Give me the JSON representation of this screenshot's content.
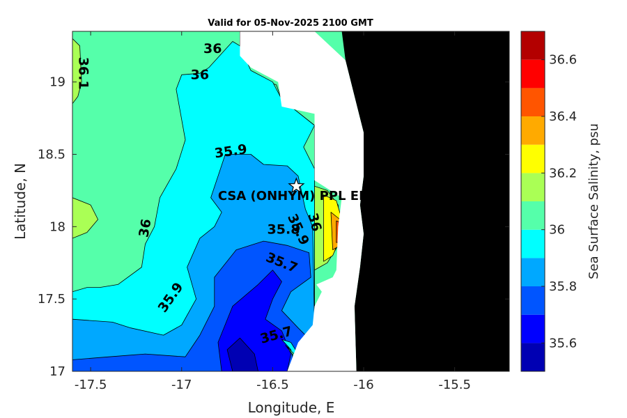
{
  "chart_data": {
    "type": "heatmap",
    "title": "Valid for 05-Nov-2025 2100 GMT",
    "xlabel": "Longitude, E",
    "ylabel": "Latitude, N",
    "xlim": [
      -17.6,
      -15.2
    ],
    "ylim": [
      17.0,
      19.35
    ],
    "xticks": [
      -17.5,
      -17,
      -16.5,
      -16,
      -15.5
    ],
    "xtick_labels": [
      "-17.5",
      "-17",
      "-16.5",
      "-16",
      "-15.5"
    ],
    "yticks": [
      17,
      17.5,
      18,
      18.5,
      19
    ],
    "ytick_labels": [
      "17",
      "17.5",
      "18",
      "18.5",
      "19"
    ],
    "colorbar": {
      "label": "Sea Surface Salinity, psu",
      "range": [
        35.5,
        36.7
      ],
      "levels": [
        35.5,
        35.6,
        35.7,
        35.8,
        35.9,
        36.0,
        36.1,
        36.2,
        36.3,
        36.4,
        36.5,
        36.6,
        36.7
      ],
      "colors": [
        "#0000b3",
        "#0000ff",
        "#0055ff",
        "#00a8ff",
        "#00ffff",
        "#55ffaa",
        "#aaff55",
        "#ffff00",
        "#ffaa00",
        "#ff5500",
        "#ff0000",
        "#b30000"
      ],
      "ticks": [
        35.6,
        35.8,
        36.0,
        36.2,
        36.4,
        36.6
      ],
      "tick_labels": [
        "35.6",
        "35.8",
        "36",
        "36.2",
        "36.4",
        "36.6"
      ]
    },
    "regions": [
      {
        "level": 36.0,
        "points": [
          [
            -17.6,
            19.35
          ],
          [
            -16.68,
            19.35
          ],
          [
            -16.68,
            19.07
          ],
          [
            -16.48,
            18.98
          ],
          [
            -16.45,
            18.88
          ],
          [
            -16.27,
            18.7
          ],
          [
            -16.27,
            17.3
          ],
          [
            -16.32,
            17.0
          ],
          [
            -17.6,
            17.0
          ]
        ]
      },
      {
        "level": 36.1,
        "points": [
          [
            -17.6,
            19.3
          ],
          [
            -17.56,
            19.25
          ],
          [
            -17.55,
            19.0
          ],
          [
            -17.57,
            18.9
          ],
          [
            -17.6,
            18.85
          ]
        ]
      },
      {
        "level": 36.1,
        "points": [
          [
            -17.6,
            18.2
          ],
          [
            -17.5,
            18.15
          ],
          [
            -17.46,
            18.05
          ],
          [
            -17.52,
            17.96
          ],
          [
            -17.6,
            17.92
          ]
        ]
      },
      {
        "level": 35.9,
        "points": [
          [
            -16.72,
            19.28
          ],
          [
            -16.85,
            19.1
          ],
          [
            -16.9,
            19.06
          ],
          [
            -17.0,
            19.05
          ],
          [
            -17.03,
            18.95
          ],
          [
            -16.98,
            18.6
          ],
          [
            -17.03,
            18.4
          ],
          [
            -17.12,
            18.2
          ],
          [
            -17.15,
            18.0
          ],
          [
            -17.2,
            17.88
          ],
          [
            -17.22,
            17.72
          ],
          [
            -17.35,
            17.6
          ],
          [
            -17.45,
            17.58
          ],
          [
            -17.52,
            17.58
          ],
          [
            -17.6,
            17.55
          ],
          [
            -17.6,
            17.0
          ],
          [
            -16.32,
            17.0
          ],
          [
            -16.27,
            17.3
          ],
          [
            -16.27,
            18.7
          ],
          [
            -16.45,
            18.88
          ],
          [
            -16.5,
            19.0
          ],
          [
            -16.62,
            19.08
          ],
          [
            -16.68,
            19.25
          ]
        ]
      },
      {
        "level": 35.8,
        "points": [
          [
            -17.6,
            17.36
          ],
          [
            -17.38,
            17.34
          ],
          [
            -17.28,
            17.3
          ],
          [
            -17.1,
            17.25
          ],
          [
            -17.0,
            17.32
          ],
          [
            -16.92,
            17.5
          ],
          [
            -16.97,
            17.72
          ],
          [
            -16.9,
            17.92
          ],
          [
            -16.82,
            18.0
          ],
          [
            -16.78,
            18.1
          ],
          [
            -16.84,
            18.2
          ],
          [
            -16.8,
            18.35
          ],
          [
            -16.76,
            18.5
          ],
          [
            -16.62,
            18.5
          ],
          [
            -16.55,
            18.43
          ],
          [
            -16.42,
            18.42
          ],
          [
            -16.36,
            18.35
          ],
          [
            -16.32,
            18.12
          ],
          [
            -16.28,
            18.0
          ],
          [
            -16.27,
            17.3
          ],
          [
            -16.32,
            17.0
          ],
          [
            -17.6,
            17.0
          ]
        ]
      },
      {
        "level": 35.7,
        "points": [
          [
            -17.6,
            17.08
          ],
          [
            -17.4,
            17.1
          ],
          [
            -17.2,
            17.12
          ],
          [
            -16.98,
            17.1
          ],
          [
            -16.9,
            17.25
          ],
          [
            -16.82,
            17.45
          ],
          [
            -16.82,
            17.65
          ],
          [
            -16.7,
            17.84
          ],
          [
            -16.55,
            17.9
          ],
          [
            -16.42,
            17.87
          ],
          [
            -16.3,
            17.82
          ],
          [
            -16.29,
            17.65
          ],
          [
            -16.4,
            17.55
          ],
          [
            -16.45,
            17.42
          ],
          [
            -16.36,
            17.3
          ],
          [
            -16.28,
            17.2
          ],
          [
            -16.32,
            17.0
          ],
          [
            -17.6,
            17.0
          ]
        ]
      },
      {
        "level": 35.6,
        "points": [
          [
            -16.78,
            17.0
          ],
          [
            -16.8,
            17.2
          ],
          [
            -16.72,
            17.45
          ],
          [
            -16.58,
            17.6
          ],
          [
            -16.5,
            17.7
          ],
          [
            -16.45,
            17.62
          ],
          [
            -16.5,
            17.5
          ],
          [
            -16.54,
            17.36
          ],
          [
            -16.45,
            17.28
          ],
          [
            -16.4,
            17.12
          ],
          [
            -16.42,
            17.0
          ]
        ]
      },
      {
        "level": 35.5,
        "points": [
          [
            -16.72,
            17.0
          ],
          [
            -16.75,
            17.15
          ],
          [
            -16.68,
            17.23
          ],
          [
            -16.6,
            17.12
          ],
          [
            -16.58,
            17.0
          ]
        ]
      },
      {
        "level": 36.0,
        "points": [
          [
            -16.27,
            18.7
          ],
          [
            -16.33,
            18.55
          ],
          [
            -16.27,
            18.4
          ]
        ]
      },
      {
        "level": 36.1,
        "points": [
          [
            -16.27,
            18.28
          ],
          [
            -16.2,
            18.25
          ],
          [
            -16.14,
            18.15
          ],
          [
            -16.13,
            17.98
          ],
          [
            -16.15,
            17.85
          ],
          [
            -16.2,
            17.75
          ],
          [
            -16.27,
            17.7
          ]
        ]
      },
      {
        "level": 36.2,
        "points": [
          [
            -16.22,
            18.22
          ],
          [
            -16.15,
            18.18
          ],
          [
            -16.12,
            18.05
          ],
          [
            -16.13,
            17.92
          ],
          [
            -16.17,
            17.8
          ],
          [
            -16.22,
            17.76
          ]
        ]
      },
      {
        "level": 36.3,
        "points": [
          [
            -16.18,
            18.1
          ],
          [
            -16.13,
            18.05
          ],
          [
            -16.11,
            17.95
          ],
          [
            -16.13,
            17.87
          ],
          [
            -16.17,
            17.84
          ]
        ]
      },
      {
        "level": 36.4,
        "points": [
          [
            -16.15,
            18.04
          ],
          [
            -16.11,
            18.02
          ],
          [
            -16.1,
            17.95
          ],
          [
            -16.12,
            17.9
          ],
          [
            -16.15,
            17.89
          ]
        ]
      },
      {
        "level": 36.5,
        "points": [
          [
            -16.12,
            18.02
          ],
          [
            -16.09,
            17.96
          ],
          [
            -16.1,
            17.92
          ],
          [
            -16.13,
            17.92
          ]
        ]
      },
      {
        "level": 35.9,
        "points": [
          [
            -16.45,
            17.22
          ],
          [
            -16.4,
            17.15
          ],
          [
            -16.38,
            17.05
          ],
          [
            -16.36,
            17.0
          ],
          [
            -16.32,
            17.0
          ],
          [
            -16.35,
            17.1
          ],
          [
            -16.4,
            17.2
          ]
        ]
      },
      {
        "level": 36.0,
        "points": [
          [
            -16.43,
            17.18
          ],
          [
            -16.38,
            17.1
          ],
          [
            -16.36,
            17.0
          ],
          [
            -16.33,
            17.0
          ],
          [
            -16.35,
            17.08
          ]
        ]
      }
    ],
    "land_points": [
      [
        -16.27,
        19.35
      ],
      [
        -15.2,
        19.35
      ],
      [
        -15.2,
        17.0
      ],
      [
        -16.04,
        17.0
      ],
      [
        -16.05,
        17.45
      ],
      [
        -16.02,
        17.72
      ],
      [
        -16.0,
        17.95
      ],
      [
        -16.02,
        18.15
      ],
      [
        -16.0,
        18.35
      ],
      [
        -16.0,
        18.65
      ],
      [
        -16.05,
        18.9
      ],
      [
        -16.1,
        19.15
      ],
      [
        -16.12,
        19.35
      ]
    ],
    "mask_points": [
      [
        -16.68,
        19.35
      ],
      [
        -16.27,
        19.35
      ],
      [
        -16.1,
        19.15
      ],
      [
        -16.05,
        18.9
      ],
      [
        -16.0,
        18.65
      ],
      [
        -16.0,
        18.35
      ],
      [
        -16.02,
        18.15
      ],
      [
        -16.0,
        17.95
      ],
      [
        -16.02,
        17.72
      ],
      [
        -16.05,
        17.45
      ],
      [
        -16.04,
        17.0
      ],
      [
        -16.42,
        17.0
      ],
      [
        -16.36,
        17.2
      ],
      [
        -16.28,
        17.32
      ],
      [
        -16.27,
        17.45
      ],
      [
        -16.23,
        17.55
      ],
      [
        -16.26,
        17.6
      ],
      [
        -16.17,
        17.65
      ],
      [
        -16.15,
        17.7
      ],
      [
        -16.14,
        18.0
      ],
      [
        -16.12,
        18.2
      ],
      [
        -16.27,
        18.32
      ],
      [
        -16.27,
        18.78
      ],
      [
        -16.45,
        18.83
      ],
      [
        -16.47,
        19.0
      ],
      [
        -16.62,
        19.1
      ],
      [
        -16.68,
        19.18
      ]
    ],
    "contour_labels": [
      {
        "text": "36",
        "lon": -16.83,
        "lat": 19.23,
        "rotate": 0
      },
      {
        "text": "36",
        "lon": -16.9,
        "lat": 19.05,
        "rotate": 0
      },
      {
        "text": "36.1",
        "lon": -17.54,
        "lat": 19.06,
        "rotate": 90
      },
      {
        "text": "35.9",
        "lon": -16.73,
        "lat": 18.52,
        "rotate": -8
      },
      {
        "text": "36",
        "lon": -17.2,
        "lat": 17.99,
        "rotate": -80
      },
      {
        "text": "35.8",
        "lon": -16.44,
        "lat": 17.98,
        "rotate": 0
      },
      {
        "text": "35.9",
        "lon": -16.36,
        "lat": 17.98,
        "rotate": 65
      },
      {
        "text": "36",
        "lon": -16.27,
        "lat": 18.03,
        "rotate": 75
      },
      {
        "text": "35.7",
        "lon": -16.45,
        "lat": 17.75,
        "rotate": 22
      },
      {
        "text": "35.9",
        "lon": -17.06,
        "lat": 17.51,
        "rotate": -55
      },
      {
        "text": "35.7",
        "lon": -16.48,
        "lat": 17.25,
        "rotate": -15
      }
    ],
    "site": {
      "name": "CSA (ONHYM) PPL EBS",
      "lon": -16.37,
      "lat": 18.28,
      "marker": "star"
    }
  }
}
